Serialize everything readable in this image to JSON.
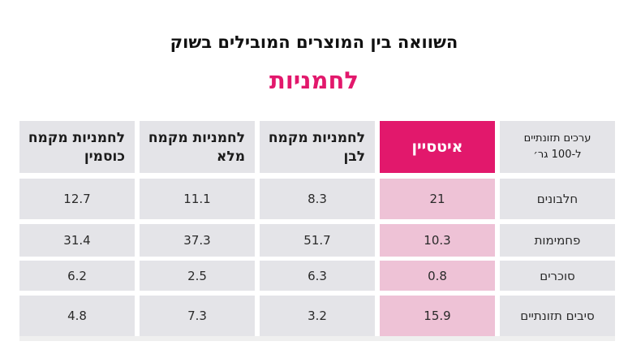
{
  "title": "השוואה בין המוצרים המובילים בשוק",
  "subtitle": "לחמניות",
  "table": {
    "corner_header_line1": "ערכים תזונתיים",
    "corner_header_line2": "ל-100 גר׳",
    "columns": [
      {
        "label": "איטסיין",
        "highlight": true
      },
      {
        "label": "לחמניות מקמח לבן",
        "highlight": false
      },
      {
        "label": "לחמניות מקמח מלא",
        "highlight": false
      },
      {
        "label": "לחמניות מקמח כוסמין",
        "highlight": false
      }
    ],
    "rows": [
      {
        "label": "חלבונים",
        "values": [
          "21",
          "8.3",
          "11.1",
          "12.7"
        ]
      },
      {
        "label": "פחמימות",
        "values": [
          "10.3",
          "51.7",
          "37.3",
          "31.4"
        ]
      },
      {
        "label": "סוכרים",
        "values": [
          "0.8",
          "6.3",
          "2.5",
          "6.2"
        ]
      },
      {
        "label": "סיבים תזונתיים",
        "values": [
          "15.9",
          "3.2",
          "7.3",
          "4.8"
        ]
      }
    ]
  },
  "colors": {
    "accent": "#e2186c",
    "accent_light": "#eec2d6",
    "cell_bg": "#e4e4e8"
  }
}
